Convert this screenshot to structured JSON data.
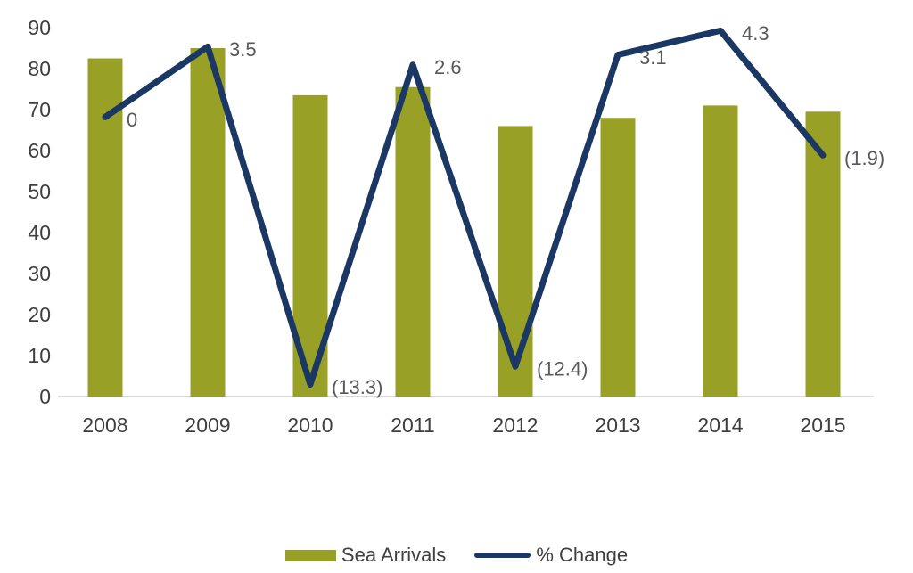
{
  "chart_data": {
    "type": "combo-bar-line",
    "title": "",
    "categories": [
      "2008",
      "2009",
      "2010",
      "2011",
      "2012",
      "2013",
      "2014",
      "2015"
    ],
    "series": [
      {
        "name": "Sea Arrivals",
        "type": "bar",
        "color": "#98A026",
        "values": [
          82.5,
          85,
          73.5,
          75.5,
          66,
          68,
          71,
          69.5
        ]
      },
      {
        "name": "% Change",
        "type": "line",
        "color": "#1B3764",
        "values": [
          0,
          3.5,
          -13.3,
          2.6,
          -12.4,
          3.1,
          4.3,
          -1.9
        ],
        "data_labels": [
          "0",
          "3.5",
          "(13.3)",
          "2.6",
          "(12.4)",
          "3.1",
          "4.3",
          "(1.9)"
        ]
      }
    ],
    "xlabel": "",
    "ylabel": "",
    "primary_ylim": [
      0,
      90
    ],
    "primary_yticks": [
      0,
      10,
      20,
      30,
      40,
      50,
      60,
      70,
      80,
      90
    ],
    "secondary_ylim": [
      -13.9,
      4.45
    ],
    "secondary_axis_visible": false,
    "grid": false,
    "legend_position": "bottom",
    "axis_line_color": "#D9D9D9",
    "tick_label_color": "#3F3F3F",
    "data_label_color": "#595959"
  }
}
